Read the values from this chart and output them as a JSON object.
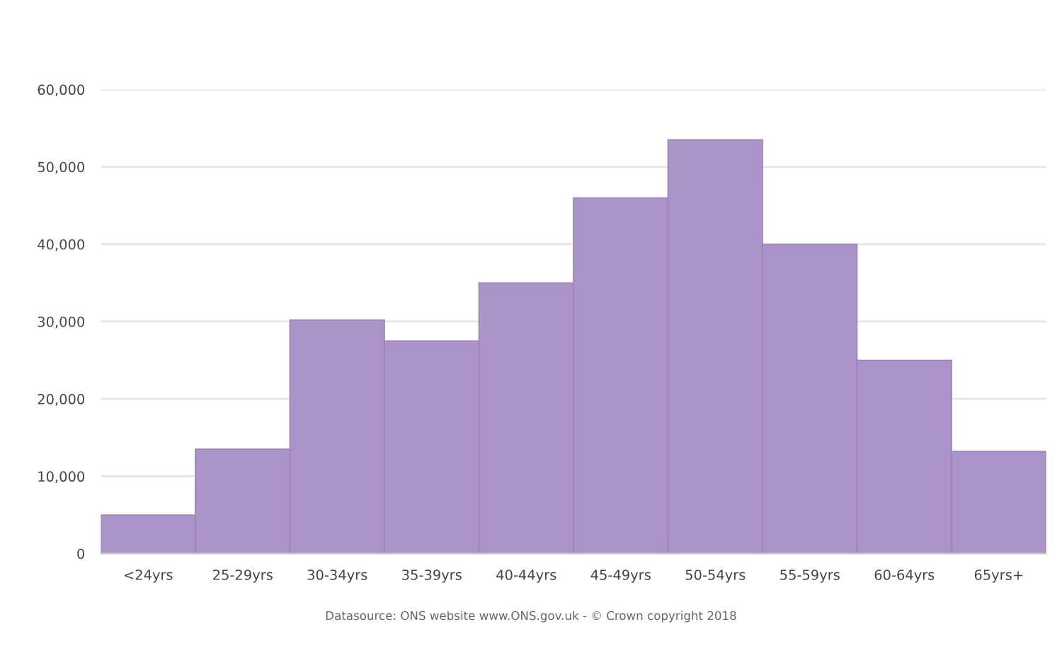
{
  "chart_data": {
    "type": "bar",
    "categories": [
      "<24yrs",
      "25-29yrs",
      "30-34yrs",
      "35-39yrs",
      "40-44yrs",
      "45-49yrs",
      "50-54yrs",
      "55-59yrs",
      "60-64yrs",
      "65yrs+"
    ],
    "values": [
      5000,
      13500,
      30200,
      27500,
      35000,
      46000,
      53500,
      40000,
      25000,
      13200
    ],
    "color": "#ab94c8",
    "ylim": [
      0,
      60000
    ],
    "yticks": [
      {
        "value": 0,
        "label": "0"
      },
      {
        "value": 10000,
        "label": "10,000"
      },
      {
        "value": 20000,
        "label": "20,000"
      },
      {
        "value": 30000,
        "label": "30,000"
      },
      {
        "value": 40000,
        "label": "40,000"
      },
      {
        "value": 50000,
        "label": "50,000"
      },
      {
        "value": 60000,
        "label": "60,000"
      }
    ],
    "grid": "y",
    "annotations": [
      "Datasource: ONS website www.ONS.gov.uk - © Crown copyright 2018"
    ]
  }
}
